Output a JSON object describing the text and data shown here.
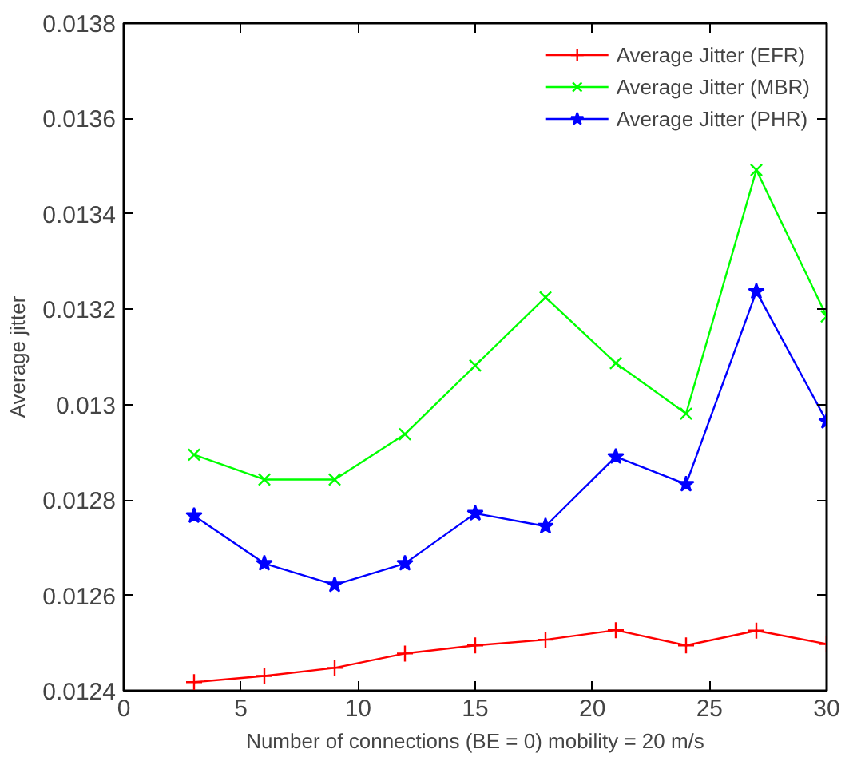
{
  "chart_data": {
    "type": "line",
    "xlabel": "Number of connections (BE = 0) mobility = 20 m/s",
    "ylabel": "Average jitter",
    "x": [
      3,
      6,
      9,
      12,
      15,
      18,
      21,
      24,
      27,
      30
    ],
    "series": [
      {
        "name": "Average Jitter (EFR)",
        "color": "#ff0000",
        "marker": "cross",
        "values": [
          0.012418,
          0.012431,
          0.012448,
          0.012478,
          0.012495,
          0.012507,
          0.012527,
          0.012495,
          0.012526,
          0.012498
        ]
      },
      {
        "name": "Average Jitter (MBR)",
        "color": "#00ff00",
        "marker": "x",
        "values": [
          0.012895,
          0.012843,
          0.012843,
          0.012938,
          0.013082,
          0.013225,
          0.013087,
          0.012981,
          0.013492,
          0.013185
        ]
      },
      {
        "name": "Average Jitter (PHR)",
        "color": "#0000ff",
        "marker": "star",
        "values": [
          0.012767,
          0.012667,
          0.012622,
          0.012667,
          0.012772,
          0.012745,
          0.012891,
          0.012833,
          0.013237,
          0.012965
        ]
      }
    ],
    "xlim": [
      0,
      30
    ],
    "xticks": [
      0,
      5,
      10,
      15,
      20,
      25,
      30
    ],
    "ylim": [
      0.0124,
      0.0138
    ],
    "yticks": [
      0.0124,
      0.0126,
      0.0128,
      0.013,
      0.0132,
      0.0134,
      0.0136,
      0.0138
    ],
    "grid": false,
    "legend": "top right",
    "line_style": "solid"
  }
}
